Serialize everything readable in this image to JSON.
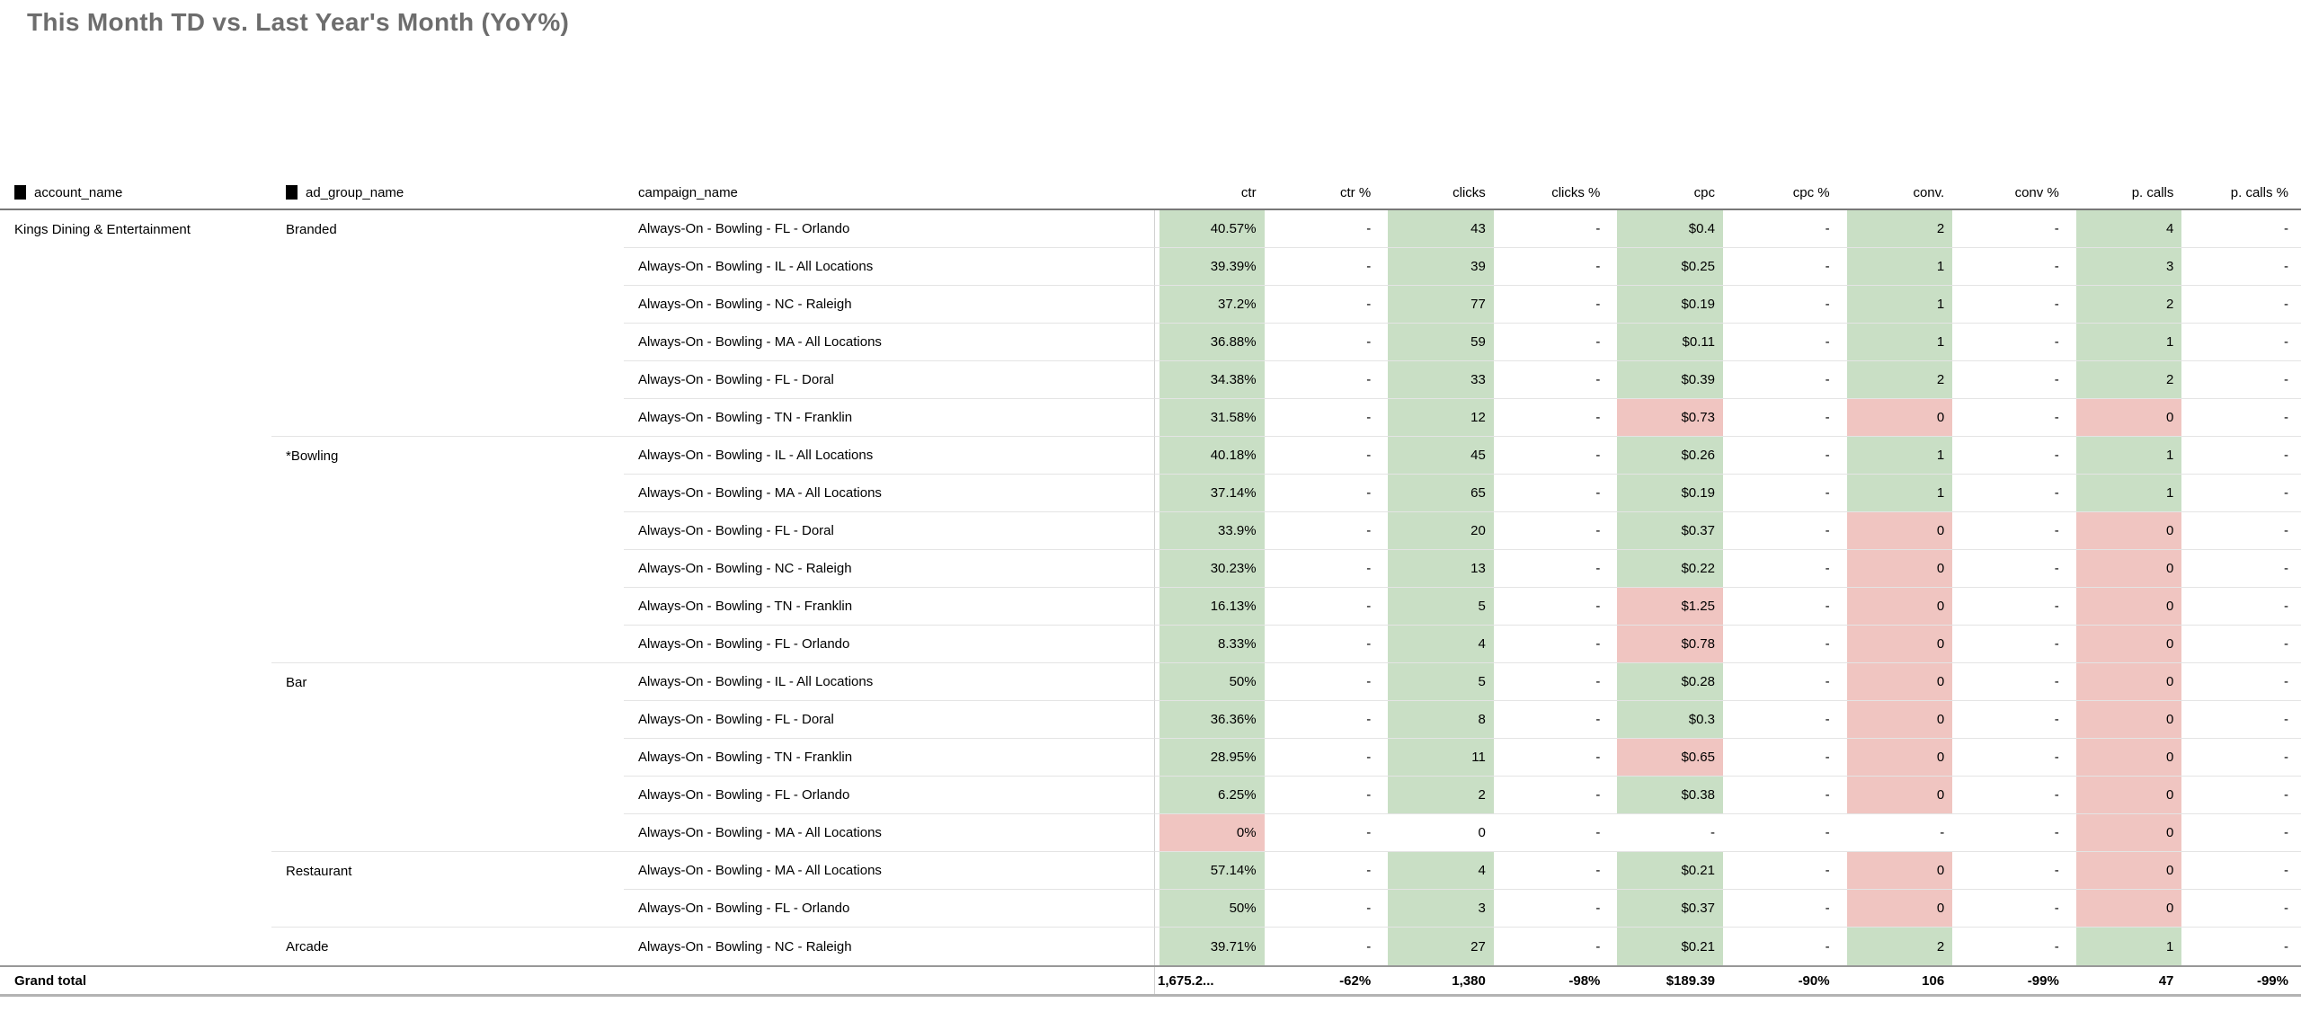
{
  "title": "This Month TD vs. Last Year's Month (YoY%)",
  "colors": {
    "heat_green": "#c9dfc5",
    "heat_red": "#f0c5c1"
  },
  "chart_data": {
    "type": "table",
    "title": "This Month TD vs. Last Year's Month (YoY%)",
    "columns": [
      "account_name",
      "ad_group_name",
      "campaign_name",
      "ctr",
      "ctr %",
      "clicks",
      "clicks %",
      "cpc",
      "cpc %",
      "conv.",
      "conv %",
      "p. calls",
      "p. calls %"
    ]
  },
  "table": {
    "columns": {
      "account": "account_name",
      "ad_group": "ad_group_name",
      "campaign": "campaign_name",
      "metrics": [
        "ctr",
        "ctr %",
        "clicks",
        "clicks %",
        "cpc",
        "cpc %",
        "conv.",
        "conv %",
        "p. calls",
        "p. calls %"
      ]
    },
    "rows": [
      {
        "account": "Kings Dining & Entertainment",
        "ad_group": "Branded",
        "campaign": "Always-On - Bowling - FL - Orlando",
        "cells": [
          {
            "v": "40.57%",
            "bg": "green"
          },
          {
            "v": "-"
          },
          {
            "v": "43",
            "bg": "green"
          },
          {
            "v": "-"
          },
          {
            "v": "$0.4",
            "bg": "green"
          },
          {
            "v": "-"
          },
          {
            "v": "2",
            "bg": "green"
          },
          {
            "v": "-"
          },
          {
            "v": "4",
            "bg": "green"
          },
          {
            "v": "-"
          }
        ]
      },
      {
        "campaign": "Always-On - Bowling - IL - All Locations",
        "cells": [
          {
            "v": "39.39%",
            "bg": "green"
          },
          {
            "v": "-"
          },
          {
            "v": "39",
            "bg": "green"
          },
          {
            "v": "-"
          },
          {
            "v": "$0.25",
            "bg": "green"
          },
          {
            "v": "-"
          },
          {
            "v": "1",
            "bg": "green"
          },
          {
            "v": "-"
          },
          {
            "v": "3",
            "bg": "green"
          },
          {
            "v": "-"
          }
        ]
      },
      {
        "campaign": "Always-On - Bowling - NC - Raleigh",
        "cells": [
          {
            "v": "37.2%",
            "bg": "green"
          },
          {
            "v": "-"
          },
          {
            "v": "77",
            "bg": "green"
          },
          {
            "v": "-"
          },
          {
            "v": "$0.19",
            "bg": "green"
          },
          {
            "v": "-"
          },
          {
            "v": "1",
            "bg": "green"
          },
          {
            "v": "-"
          },
          {
            "v": "2",
            "bg": "green"
          },
          {
            "v": "-"
          }
        ]
      },
      {
        "campaign": "Always-On - Bowling - MA - All Locations",
        "cells": [
          {
            "v": "36.88%",
            "bg": "green"
          },
          {
            "v": "-"
          },
          {
            "v": "59",
            "bg": "green"
          },
          {
            "v": "-"
          },
          {
            "v": "$0.11",
            "bg": "green"
          },
          {
            "v": "-"
          },
          {
            "v": "1",
            "bg": "green"
          },
          {
            "v": "-"
          },
          {
            "v": "1",
            "bg": "green"
          },
          {
            "v": "-"
          }
        ]
      },
      {
        "campaign": "Always-On - Bowling - FL - Doral",
        "cells": [
          {
            "v": "34.38%",
            "bg": "green"
          },
          {
            "v": "-"
          },
          {
            "v": "33",
            "bg": "green"
          },
          {
            "v": "-"
          },
          {
            "v": "$0.39",
            "bg": "green"
          },
          {
            "v": "-"
          },
          {
            "v": "2",
            "bg": "green"
          },
          {
            "v": "-"
          },
          {
            "v": "2",
            "bg": "green"
          },
          {
            "v": "-"
          }
        ]
      },
      {
        "campaign": "Always-On - Bowling - TN - Franklin",
        "group_last": true,
        "cells": [
          {
            "v": "31.58%",
            "bg": "green"
          },
          {
            "v": "-"
          },
          {
            "v": "12",
            "bg": "green"
          },
          {
            "v": "-"
          },
          {
            "v": "$0.73",
            "bg": "red"
          },
          {
            "v": "-"
          },
          {
            "v": "0",
            "bg": "red"
          },
          {
            "v": "-"
          },
          {
            "v": "0",
            "bg": "red"
          },
          {
            "v": "-"
          }
        ]
      },
      {
        "ad_group": "*Bowling",
        "campaign": "Always-On - Bowling - IL - All Locations",
        "cells": [
          {
            "v": "40.18%",
            "bg": "green"
          },
          {
            "v": "-"
          },
          {
            "v": "45",
            "bg": "green"
          },
          {
            "v": "-"
          },
          {
            "v": "$0.26",
            "bg": "green"
          },
          {
            "v": "-"
          },
          {
            "v": "1",
            "bg": "green"
          },
          {
            "v": "-"
          },
          {
            "v": "1",
            "bg": "green"
          },
          {
            "v": "-"
          }
        ]
      },
      {
        "campaign": "Always-On - Bowling - MA - All Locations",
        "cells": [
          {
            "v": "37.14%",
            "bg": "green"
          },
          {
            "v": "-"
          },
          {
            "v": "65",
            "bg": "green"
          },
          {
            "v": "-"
          },
          {
            "v": "$0.19",
            "bg": "green"
          },
          {
            "v": "-"
          },
          {
            "v": "1",
            "bg": "green"
          },
          {
            "v": "-"
          },
          {
            "v": "1",
            "bg": "green"
          },
          {
            "v": "-"
          }
        ]
      },
      {
        "campaign": "Always-On - Bowling - FL - Doral",
        "cells": [
          {
            "v": "33.9%",
            "bg": "green"
          },
          {
            "v": "-"
          },
          {
            "v": "20",
            "bg": "green"
          },
          {
            "v": "-"
          },
          {
            "v": "$0.37",
            "bg": "green"
          },
          {
            "v": "-"
          },
          {
            "v": "0",
            "bg": "red"
          },
          {
            "v": "-"
          },
          {
            "v": "0",
            "bg": "red"
          },
          {
            "v": "-"
          }
        ]
      },
      {
        "campaign": "Always-On - Bowling - NC - Raleigh",
        "cells": [
          {
            "v": "30.23%",
            "bg": "green"
          },
          {
            "v": "-"
          },
          {
            "v": "13",
            "bg": "green"
          },
          {
            "v": "-"
          },
          {
            "v": "$0.22",
            "bg": "green"
          },
          {
            "v": "-"
          },
          {
            "v": "0",
            "bg": "red"
          },
          {
            "v": "-"
          },
          {
            "v": "0",
            "bg": "red"
          },
          {
            "v": "-"
          }
        ]
      },
      {
        "campaign": "Always-On - Bowling - TN - Franklin",
        "cells": [
          {
            "v": "16.13%",
            "bg": "green"
          },
          {
            "v": "-"
          },
          {
            "v": "5",
            "bg": "green"
          },
          {
            "v": "-"
          },
          {
            "v": "$1.25",
            "bg": "red"
          },
          {
            "v": "-"
          },
          {
            "v": "0",
            "bg": "red"
          },
          {
            "v": "-"
          },
          {
            "v": "0",
            "bg": "red"
          },
          {
            "v": "-"
          }
        ]
      },
      {
        "campaign": "Always-On - Bowling - FL - Orlando",
        "group_last": true,
        "cells": [
          {
            "v": "8.33%",
            "bg": "green"
          },
          {
            "v": "-"
          },
          {
            "v": "4",
            "bg": "green"
          },
          {
            "v": "-"
          },
          {
            "v": "$0.78",
            "bg": "red"
          },
          {
            "v": "-"
          },
          {
            "v": "0",
            "bg": "red"
          },
          {
            "v": "-"
          },
          {
            "v": "0",
            "bg": "red"
          },
          {
            "v": "-"
          }
        ]
      },
      {
        "ad_group": "Bar",
        "campaign": "Always-On - Bowling - IL - All Locations",
        "cells": [
          {
            "v": "50%",
            "bg": "green"
          },
          {
            "v": "-"
          },
          {
            "v": "5",
            "bg": "green"
          },
          {
            "v": "-"
          },
          {
            "v": "$0.28",
            "bg": "green"
          },
          {
            "v": "-"
          },
          {
            "v": "0",
            "bg": "red"
          },
          {
            "v": "-"
          },
          {
            "v": "0",
            "bg": "red"
          },
          {
            "v": "-"
          }
        ]
      },
      {
        "campaign": "Always-On - Bowling - FL - Doral",
        "cells": [
          {
            "v": "36.36%",
            "bg": "green"
          },
          {
            "v": "-"
          },
          {
            "v": "8",
            "bg": "green"
          },
          {
            "v": "-"
          },
          {
            "v": "$0.3",
            "bg": "green"
          },
          {
            "v": "-"
          },
          {
            "v": "0",
            "bg": "red"
          },
          {
            "v": "-"
          },
          {
            "v": "0",
            "bg": "red"
          },
          {
            "v": "-"
          }
        ]
      },
      {
        "campaign": "Always-On - Bowling - TN - Franklin",
        "cells": [
          {
            "v": "28.95%",
            "bg": "green"
          },
          {
            "v": "-"
          },
          {
            "v": "11",
            "bg": "green"
          },
          {
            "v": "-"
          },
          {
            "v": "$0.65",
            "bg": "red"
          },
          {
            "v": "-"
          },
          {
            "v": "0",
            "bg": "red"
          },
          {
            "v": "-"
          },
          {
            "v": "0",
            "bg": "red"
          },
          {
            "v": "-"
          }
        ]
      },
      {
        "campaign": "Always-On - Bowling - FL - Orlando",
        "cells": [
          {
            "v": "6.25%",
            "bg": "green"
          },
          {
            "v": "-"
          },
          {
            "v": "2",
            "bg": "green"
          },
          {
            "v": "-"
          },
          {
            "v": "$0.38",
            "bg": "green"
          },
          {
            "v": "-"
          },
          {
            "v": "0",
            "bg": "red"
          },
          {
            "v": "-"
          },
          {
            "v": "0",
            "bg": "red"
          },
          {
            "v": "-"
          }
        ]
      },
      {
        "campaign": "Always-On - Bowling - MA - All Locations",
        "group_last": true,
        "cells": [
          {
            "v": "0%",
            "bg": "red"
          },
          {
            "v": "-"
          },
          {
            "v": "0"
          },
          {
            "v": "-"
          },
          {
            "v": "-"
          },
          {
            "v": "-"
          },
          {
            "v": "-"
          },
          {
            "v": "-"
          },
          {
            "v": "0",
            "bg": "red"
          },
          {
            "v": "-"
          }
        ]
      },
      {
        "ad_group": "Restaurant",
        "campaign": "Always-On - Bowling - MA - All Locations",
        "cells": [
          {
            "v": "57.14%",
            "bg": "green"
          },
          {
            "v": "-"
          },
          {
            "v": "4",
            "bg": "green"
          },
          {
            "v": "-"
          },
          {
            "v": "$0.21",
            "bg": "green"
          },
          {
            "v": "-"
          },
          {
            "v": "0",
            "bg": "red"
          },
          {
            "v": "-"
          },
          {
            "v": "0",
            "bg": "red"
          },
          {
            "v": "-"
          }
        ]
      },
      {
        "campaign": "Always-On - Bowling - FL - Orlando",
        "group_last": true,
        "cells": [
          {
            "v": "50%",
            "bg": "green"
          },
          {
            "v": "-"
          },
          {
            "v": "3",
            "bg": "green"
          },
          {
            "v": "-"
          },
          {
            "v": "$0.37",
            "bg": "green"
          },
          {
            "v": "-"
          },
          {
            "v": "0",
            "bg": "red"
          },
          {
            "v": "-"
          },
          {
            "v": "0",
            "bg": "red"
          },
          {
            "v": "-"
          }
        ]
      },
      {
        "ad_group": "Arcade",
        "campaign": "Always-On - Bowling - NC - Raleigh",
        "cells": [
          {
            "v": "39.71%",
            "bg": "green"
          },
          {
            "v": "-"
          },
          {
            "v": "27",
            "bg": "green"
          },
          {
            "v": "-"
          },
          {
            "v": "$0.21",
            "bg": "green"
          },
          {
            "v": "-"
          },
          {
            "v": "2",
            "bg": "green"
          },
          {
            "v": "-"
          },
          {
            "v": "1",
            "bg": "green"
          },
          {
            "v": "-"
          }
        ]
      }
    ],
    "grand_total": {
      "label": "Grand total",
      "cells": [
        "1,675.2...",
        "-62%",
        "1,380",
        "-98%",
        "$189.39",
        "-90%",
        "106",
        "-99%",
        "47",
        "-99%"
      ]
    }
  }
}
